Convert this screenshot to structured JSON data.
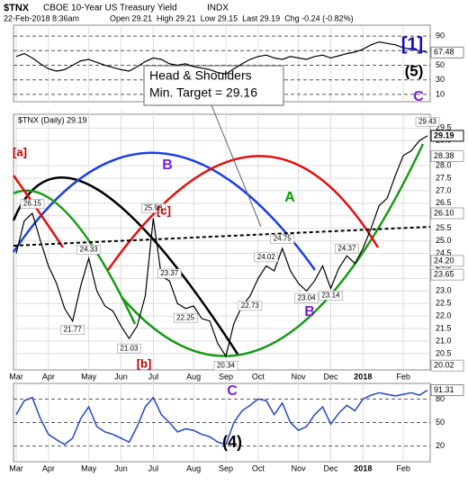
{
  "header": {
    "symbol": "$TNX",
    "name": "CBOE 10-Year US Treasury Yield",
    "exchange": "INDX",
    "date": "22-Feb-2018 8:36am",
    "quote": "Open 29.21  High 29.21  Low 29.15  Last 29.19  Chg -0.24 (-0.82%)"
  },
  "chart_data": [
    {
      "type": "line",
      "categories": [
        "Mar",
        null,
        null,
        null,
        "Apr",
        null,
        null,
        null,
        null,
        "May",
        null,
        null,
        null,
        "Jun",
        null,
        null,
        null,
        "Jul",
        null,
        null,
        null,
        null,
        "Aug",
        null,
        null,
        null,
        "Sep",
        null,
        null,
        null,
        "Oct",
        null,
        null,
        null,
        null,
        "Nov",
        null,
        null,
        null,
        "Dec",
        null,
        null,
        null,
        "2018",
        null,
        null,
        null,
        null,
        "Feb",
        null,
        null,
        null
      ],
      "series": [
        {
          "color": "#000000",
          "values": [
            62,
            66,
            60,
            52,
            45,
            42,
            44,
            50,
            56,
            58,
            54,
            50,
            47,
            44,
            42,
            48,
            55,
            60,
            58,
            52,
            50,
            52,
            48,
            46,
            44,
            40,
            38,
            45,
            52,
            58,
            62,
            64,
            60,
            58,
            62,
            60,
            58,
            62,
            64,
            60,
            63,
            66,
            68,
            72,
            78,
            82,
            80,
            78,
            74,
            72,
            70,
            67.48
          ]
        }
      ],
      "ylim": [
        0,
        100
      ],
      "yticks": [
        10,
        30,
        50,
        70,
        90
      ],
      "last_value": 67.48,
      "annotations": [
        "[1]",
        "(5)",
        "C"
      ]
    },
    {
      "type": "line",
      "legend": "$TNX (Daily) 29.19",
      "categories": [
        "Mar",
        null,
        null,
        null,
        "Apr",
        null,
        null,
        null,
        null,
        "May",
        null,
        null,
        null,
        "Jun",
        null,
        null,
        null,
        "Jul",
        null,
        null,
        null,
        null,
        "Aug",
        null,
        null,
        null,
        "Sep",
        null,
        null,
        null,
        "Oct",
        null,
        null,
        null,
        null,
        "Nov",
        null,
        null,
        null,
        "Dec",
        null,
        null,
        null,
        "2018",
        null,
        null,
        null,
        null,
        "Feb",
        null,
        null,
        null
      ],
      "series": [
        {
          "color": "#000000",
          "values": [
            24.5,
            25.8,
            26.1,
            25.0,
            24.0,
            23.3,
            22.3,
            21.8,
            23.2,
            24.3,
            23.0,
            22.4,
            22.2,
            21.6,
            21.1,
            21.6,
            22.8,
            25.9,
            23.6,
            23.4,
            22.5,
            22.3,
            22.4,
            21.9,
            21.8,
            20.9,
            20.4,
            21.7,
            22.4,
            22.8,
            23.5,
            24.0,
            23.8,
            24.7,
            23.8,
            23.3,
            23.0,
            23.4,
            24.0,
            23.1,
            23.9,
            24.4,
            24.1,
            24.7,
            25.5,
            26.4,
            26.7,
            27.6,
            28.4,
            28.6,
            29.0,
            29.19
          ]
        }
      ],
      "ylim": [
        19.85,
        30.05
      ],
      "yticks": [
        20.5,
        {
          "value": 21,
          "label": "21.0"
        },
        21.5,
        {
          "value": 22,
          "label": "22.0"
        },
        22.5,
        {
          "value": 23,
          "label": "23.0"
        },
        23.5,
        {
          "value": 24,
          "label": "24.0"
        },
        24.5,
        {
          "value": 25,
          "label": "25.0"
        },
        25.5,
        {
          "value": 26,
          "label": "26.0"
        },
        26.5,
        {
          "value": 27,
          "label": "27.0"
        },
        27.5,
        {
          "value": 28,
          "label": "28.0"
        },
        {
          "value": 29,
          "label": "29.0"
        },
        29.5
      ],
      "marker_values": [
        29.19,
        28.38,
        {
          "value": 26.1,
          "label": "26.10"
        },
        {
          "value": 24.2,
          "label": "24.20"
        },
        23.65,
        20.02
      ],
      "point_labels": [
        26.15,
        24.33,
        21.77,
        25.98,
        23.37,
        22.25,
        21.03,
        20.34,
        24.02,
        24.75,
        22.73,
        23.04,
        24.37,
        23.14,
        29.43
      ],
      "wave_labels": [
        "[a]",
        "B",
        "[c]",
        "A",
        "B",
        "[b]",
        "C"
      ],
      "callout": [
        "Head & Shoulders",
        "Min. Target = 29.16"
      ]
    },
    {
      "type": "line",
      "categories": [
        "Mar",
        null,
        null,
        null,
        "Apr",
        null,
        null,
        null,
        null,
        "May",
        null,
        null,
        null,
        "Jun",
        null,
        null,
        null,
        "Jul",
        null,
        null,
        null,
        null,
        "Aug",
        null,
        null,
        null,
        "Sep",
        null,
        null,
        null,
        "Oct",
        null,
        null,
        null,
        null,
        "Nov",
        null,
        null,
        null,
        "Dec",
        null,
        null,
        null,
        "2018",
        null,
        null,
        null,
        null,
        "Feb",
        null,
        null,
        null
      ],
      "series": [
        {
          "color": "#3050c0",
          "values": [
            60,
            78,
            82,
            55,
            35,
            28,
            22,
            30,
            55,
            70,
            45,
            38,
            35,
            30,
            25,
            45,
            70,
            82,
            60,
            50,
            38,
            42,
            40,
            35,
            32,
            25,
            22,
            50,
            65,
            72,
            80,
            78,
            60,
            75,
            50,
            40,
            45,
            60,
            70,
            48,
            62,
            72,
            65,
            80,
            85,
            88,
            86,
            84,
            86,
            88,
            85,
            91.31
          ]
        }
      ],
      "ylim": [
        0,
        100
      ],
      "yticks": [
        20,
        50,
        80
      ],
      "last_value": 91.31,
      "annotations": [
        "(4)"
      ]
    }
  ]
}
